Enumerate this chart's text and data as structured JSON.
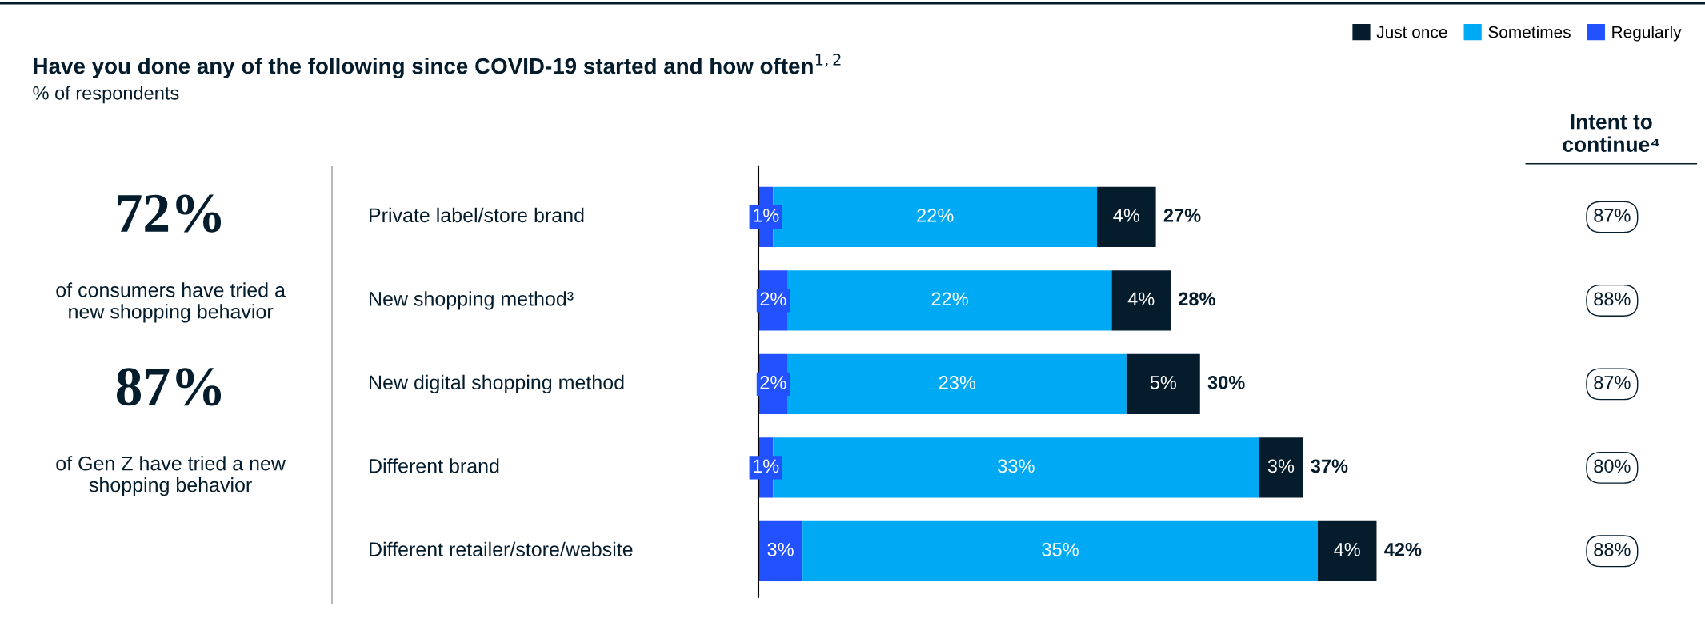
{
  "chart_data": {
    "type": "bar",
    "orientation": "horizontal",
    "stacked": true,
    "title": "Have you done any of the following since COVID-19 started and how often$^{1,2}$",
    "subtitle": "% of respondents",
    "categories": [
      "Private label/store brand",
      "New shopping method³",
      "New digital shopping method",
      "Different brand",
      "Different retailer/store/website"
    ],
    "series": [
      {
        "name": "Regularly",
        "color": "#2251ff",
        "values": [
          1,
          2,
          2,
          1,
          3
        ],
        "value_labels": [
          "1%",
          "2%",
          "2%",
          "1%",
          "3%"
        ]
      },
      {
        "name": "Sometimes",
        "color": "#00a9f4",
        "values": [
          22,
          22,
          23,
          33,
          35
        ],
        "value_labels": [
          "22%",
          "22%",
          "23%",
          "33%",
          "35%"
        ]
      },
      {
        "name": "Just once",
        "color": "#051c2c",
        "values": [
          4,
          4,
          5,
          3,
          4
        ],
        "value_labels": [
          "4%",
          "4%",
          "5%",
          "3%",
          "4%"
        ]
      }
    ],
    "totals": [
      "27%",
      "28%",
      "30%",
      "37%",
      "42%"
    ],
    "legend": "top right",
    "annotations": [
      "72%",
      "of consumers have tried a new shopping behavior",
      "87%",
      "of Gen Z have tried a new shopping behavior",
      "Intent to continue⁴",
      "87%",
      "88%",
      "87%",
      "80%",
      "88%"
    ]
  }
}
